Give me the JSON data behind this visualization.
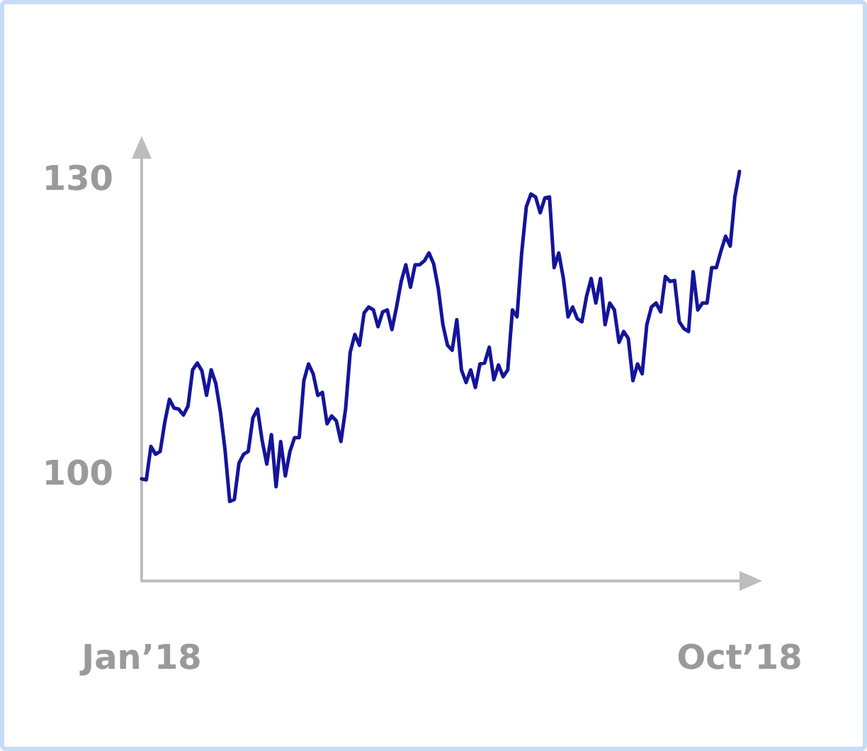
{
  "chart_data": {
    "type": "line",
    "categories": [
      "Jan’18",
      null,
      null,
      null,
      null,
      null,
      null,
      null,
      null,
      null,
      null,
      null,
      null,
      null,
      null,
      null,
      null,
      null,
      null,
      null,
      null,
      null,
      null,
      null,
      null,
      null,
      null,
      null,
      null,
      null,
      null,
      null,
      null,
      null,
      null,
      null,
      null,
      null,
      null,
      null,
      null,
      null,
      null,
      null,
      null,
      null,
      null,
      null,
      null,
      null,
      null,
      null,
      null,
      null,
      null,
      null,
      null,
      null,
      null,
      null,
      null,
      null,
      null,
      null,
      null,
      null,
      null,
      null,
      null,
      null,
      null,
      null,
      null,
      null,
      null,
      null,
      null,
      null,
      null,
      null,
      null,
      null,
      null,
      null,
      null,
      null,
      null,
      null,
      null,
      null,
      null,
      null,
      null,
      null,
      null,
      null,
      null,
      null,
      null,
      null,
      null,
      null,
      null,
      null,
      null,
      null,
      null,
      null,
      null,
      null,
      null,
      null,
      null,
      null,
      null,
      null,
      null,
      null,
      null,
      null,
      null,
      null,
      null,
      null,
      null,
      null,
      null,
      null,
      null,
      "Oct’18"
    ],
    "series": [
      {
        "color": "#14149b",
        "values": [
          99.4,
          99.3,
          102.7,
          101.9,
          102.2,
          105.2,
          107.5,
          106.6,
          106.5,
          105.9,
          106.8,
          110.5,
          111.2,
          110.4,
          107.9,
          110.5,
          109.1,
          106.2,
          102.3,
          97.1,
          97.3,
          101.0,
          101.9,
          102.2,
          105.6,
          106.5,
          103.3,
          100.9,
          103.9,
          98.6,
          103.2,
          99.7,
          102.2,
          103.6,
          103.6,
          109.4,
          111.1,
          110.1,
          107.9,
          108.2,
          105.0,
          105.8,
          105.3,
          103.2,
          106.5,
          112.3,
          114.1,
          113.0,
          116.3,
          116.9,
          116.6,
          114.9,
          116.4,
          116.6,
          114.6,
          116.9,
          119.5,
          121.2,
          118.9,
          121.2,
          121.2,
          121.6,
          122.4,
          121.3,
          118.8,
          115.1,
          113.0,
          112.5,
          115.6,
          110.5,
          109.2,
          110.5,
          108.7,
          111.1,
          111.2,
          112.8,
          109.5,
          111.0,
          109.8,
          110.5,
          116.6,
          115.9,
          122.4,
          127.1,
          128.4,
          128.1,
          126.5,
          128.0,
          128.1,
          120.9,
          122.4,
          119.8,
          115.9,
          116.9,
          115.7,
          115.4,
          118.0,
          119.8,
          117.3,
          119.8,
          115.1,
          117.3,
          116.6,
          113.3,
          114.4,
          113.7,
          109.4,
          111.1,
          110.1,
          115.1,
          116.9,
          117.3,
          116.4,
          120.0,
          119.5,
          119.6,
          115.4,
          114.7,
          114.4,
          120.5,
          116.6,
          117.3,
          117.3,
          120.9,
          120.9,
          122.6,
          124.1,
          123.1,
          128.1,
          130.7
        ]
      }
    ],
    "ylim": [
      89,
      132
    ],
    "yticks": [
      100,
      130
    ],
    "grid": false,
    "marker": "none",
    "line_style": "solid"
  }
}
